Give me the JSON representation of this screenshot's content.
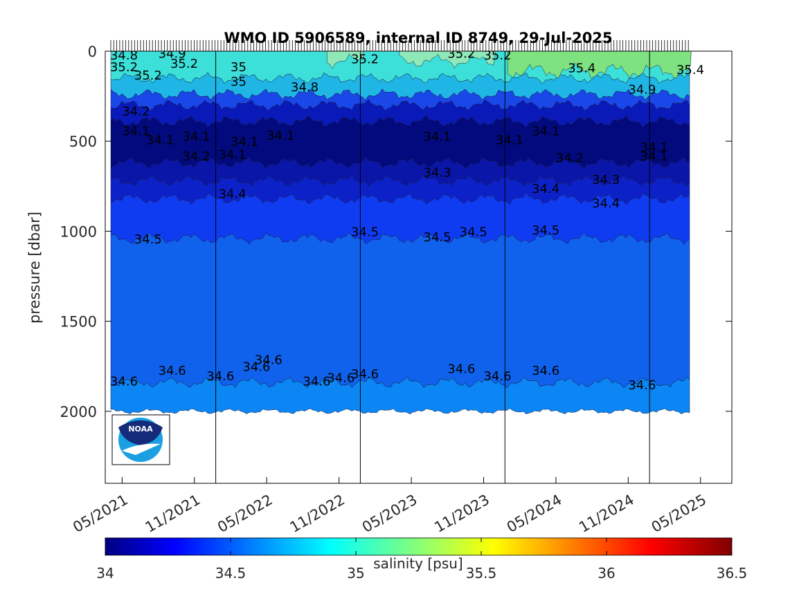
{
  "chart_data": {
    "type": "heatmap",
    "title": "WMO ID 5906589, internal ID 8749, 29-Jul-2025",
    "ylabel": "pressure [dbar]",
    "xlabel": "",
    "ylim": [
      0,
      2400
    ],
    "y_reversed": true,
    "yticks": [
      0,
      500,
      1000,
      1500,
      2000
    ],
    "ytick_labels": [
      "0",
      "500",
      "1000",
      "1500",
      "2000"
    ],
    "xlim": [
      "2021-04",
      "2025-08"
    ],
    "xticks": [
      "2021-05",
      "2021-11",
      "2022-05",
      "2022-11",
      "2023-05",
      "2023-11",
      "2024-05",
      "2024-11",
      "2025-05"
    ],
    "xtick_labels": [
      "05/2021",
      "11/2021",
      "05/2022",
      "11/2022",
      "05/2023",
      "11/2023",
      "05/2024",
      "11/2024",
      "05/2025"
    ],
    "data_xrange": [
      "2021-04",
      "2025-04"
    ],
    "year_boundaries": [
      "2022-01",
      "2023-01",
      "2024-01",
      "2025-01"
    ],
    "colorbar": {
      "label": "salinity [psu]",
      "range": [
        34,
        36.5
      ],
      "ticks": [
        34,
        34.5,
        35,
        35.5,
        36,
        36.5
      ],
      "tick_labels": [
        "34",
        "34.5",
        "35",
        "35.5",
        "36",
        "36.5"
      ],
      "colormap": "jet"
    },
    "layers": [
      {
        "salinity": 35.4,
        "color": "#7de27f",
        "note": "surface, upper ~150 dbar, mostly late 2024-2025"
      },
      {
        "salinity": 35.1,
        "color": "#3de0d8",
        "top": 0,
        "bottom": 150
      },
      {
        "salinity": 34.9,
        "color": "#1fb6e6",
        "top": 150,
        "bottom": 240
      },
      {
        "salinity": 34.5,
        "color": "#1a47e8",
        "top": 240,
        "bottom": 300
      },
      {
        "salinity": 34.3,
        "color": "#0a1ab8",
        "top": 300,
        "bottom": 390
      },
      {
        "salinity": 34.1,
        "color": "#020a7e",
        "top": 390,
        "bottom": 620
      },
      {
        "salinity": 34.2,
        "color": "#0a16a8",
        "top": 620,
        "bottom": 720
      },
      {
        "salinity": 34.3,
        "color": "#0c22c8",
        "top": 720,
        "bottom": 820
      },
      {
        "salinity": 34.45,
        "color": "#0f3cf0",
        "top": 820,
        "bottom": 1040
      },
      {
        "salinity": 34.55,
        "color": "#1062ec",
        "top": 1040,
        "bottom": 1840
      },
      {
        "salinity": 34.65,
        "color": "#0b86f4",
        "top": 1840,
        "bottom": 2000
      }
    ],
    "contour_labels": [
      {
        "text": "34.8",
        "x": "2021-04",
        "y": 20
      },
      {
        "text": "34.9",
        "x": "2021-08",
        "y": 10
      },
      {
        "text": "35.2",
        "x": "2021-04",
        "y": 85
      },
      {
        "text": "35.2",
        "x": "2021-09",
        "y": 65
      },
      {
        "text": "35.2",
        "x": "2021-06",
        "y": 130
      },
      {
        "text": "35",
        "x": "2022-02",
        "y": 85
      },
      {
        "text": "35",
        "x": "2022-02",
        "y": 165
      },
      {
        "text": "35.2",
        "x": "2022-12",
        "y": 40
      },
      {
        "text": "35.2",
        "x": "2023-08",
        "y": 10
      },
      {
        "text": "35.2",
        "x": "2023-11",
        "y": 20
      },
      {
        "text": "35.4",
        "x": "2024-06",
        "y": 90
      },
      {
        "text": "35.4",
        "x": "2025-03",
        "y": 100
      },
      {
        "text": "34.8",
        "x": "2022-07",
        "y": 195
      },
      {
        "text": "34.9",
        "x": "2024-11",
        "y": 210
      },
      {
        "text": "34.2",
        "x": "2021-05",
        "y": 330
      },
      {
        "text": "34.1",
        "x": "2021-05",
        "y": 440
      },
      {
        "text": "34.1",
        "x": "2021-07",
        "y": 490
      },
      {
        "text": "34.1",
        "x": "2021-10",
        "y": 470
      },
      {
        "text": "34.1",
        "x": "2022-02",
        "y": 500
      },
      {
        "text": "34.1",
        "x": "2022-05",
        "y": 465
      },
      {
        "text": "34.2",
        "x": "2021-10",
        "y": 580
      },
      {
        "text": "34.1",
        "x": "2022-01",
        "y": 570
      },
      {
        "text": "34.1",
        "x": "2023-06",
        "y": 470
      },
      {
        "text": "34.1",
        "x": "2023-12",
        "y": 490
      },
      {
        "text": "34.1",
        "x": "2024-03",
        "y": 440
      },
      {
        "text": "34.2",
        "x": "2024-05",
        "y": 590
      },
      {
        "text": "34.1",
        "x": "2024-12",
        "y": 530
      },
      {
        "text": "34.1",
        "x": "2024-12",
        "y": 580
      },
      {
        "text": "34.3",
        "x": "2023-06",
        "y": 670
      },
      {
        "text": "34.3",
        "x": "2024-08",
        "y": 710
      },
      {
        "text": "34.4",
        "x": "2022-01",
        "y": 790
      },
      {
        "text": "34.4",
        "x": "2024-03",
        "y": 760
      },
      {
        "text": "34.4",
        "x": "2024-08",
        "y": 840
      },
      {
        "text": "34.5",
        "x": "2021-06",
        "y": 1040
      },
      {
        "text": "34.5",
        "x": "2022-12",
        "y": 1000
      },
      {
        "text": "34.5",
        "x": "2023-06",
        "y": 1030
      },
      {
        "text": "34.5",
        "x": "2023-09",
        "y": 1000
      },
      {
        "text": "34.5",
        "x": "2024-03",
        "y": 990
      },
      {
        "text": "34.6",
        "x": "2021-04",
        "y": 1830
      },
      {
        "text": "34.6",
        "x": "2021-08",
        "y": 1770
      },
      {
        "text": "34.6",
        "x": "2021-12",
        "y": 1800
      },
      {
        "text": "34.6",
        "x": "2022-03",
        "y": 1750
      },
      {
        "text": "34.6",
        "x": "2022-04",
        "y": 1710
      },
      {
        "text": "34.6",
        "x": "2022-08",
        "y": 1830
      },
      {
        "text": "34.6",
        "x": "2022-10",
        "y": 1810
      },
      {
        "text": "34.6",
        "x": "2022-12",
        "y": 1790
      },
      {
        "text": "34.6",
        "x": "2023-08",
        "y": 1760
      },
      {
        "text": "34.6",
        "x": "2023-11",
        "y": 1800
      },
      {
        "text": "34.6",
        "x": "2024-03",
        "y": 1770
      },
      {
        "text": "34.6",
        "x": "2024-11",
        "y": 1850
      }
    ]
  },
  "logo": {
    "text": "NOAA"
  }
}
